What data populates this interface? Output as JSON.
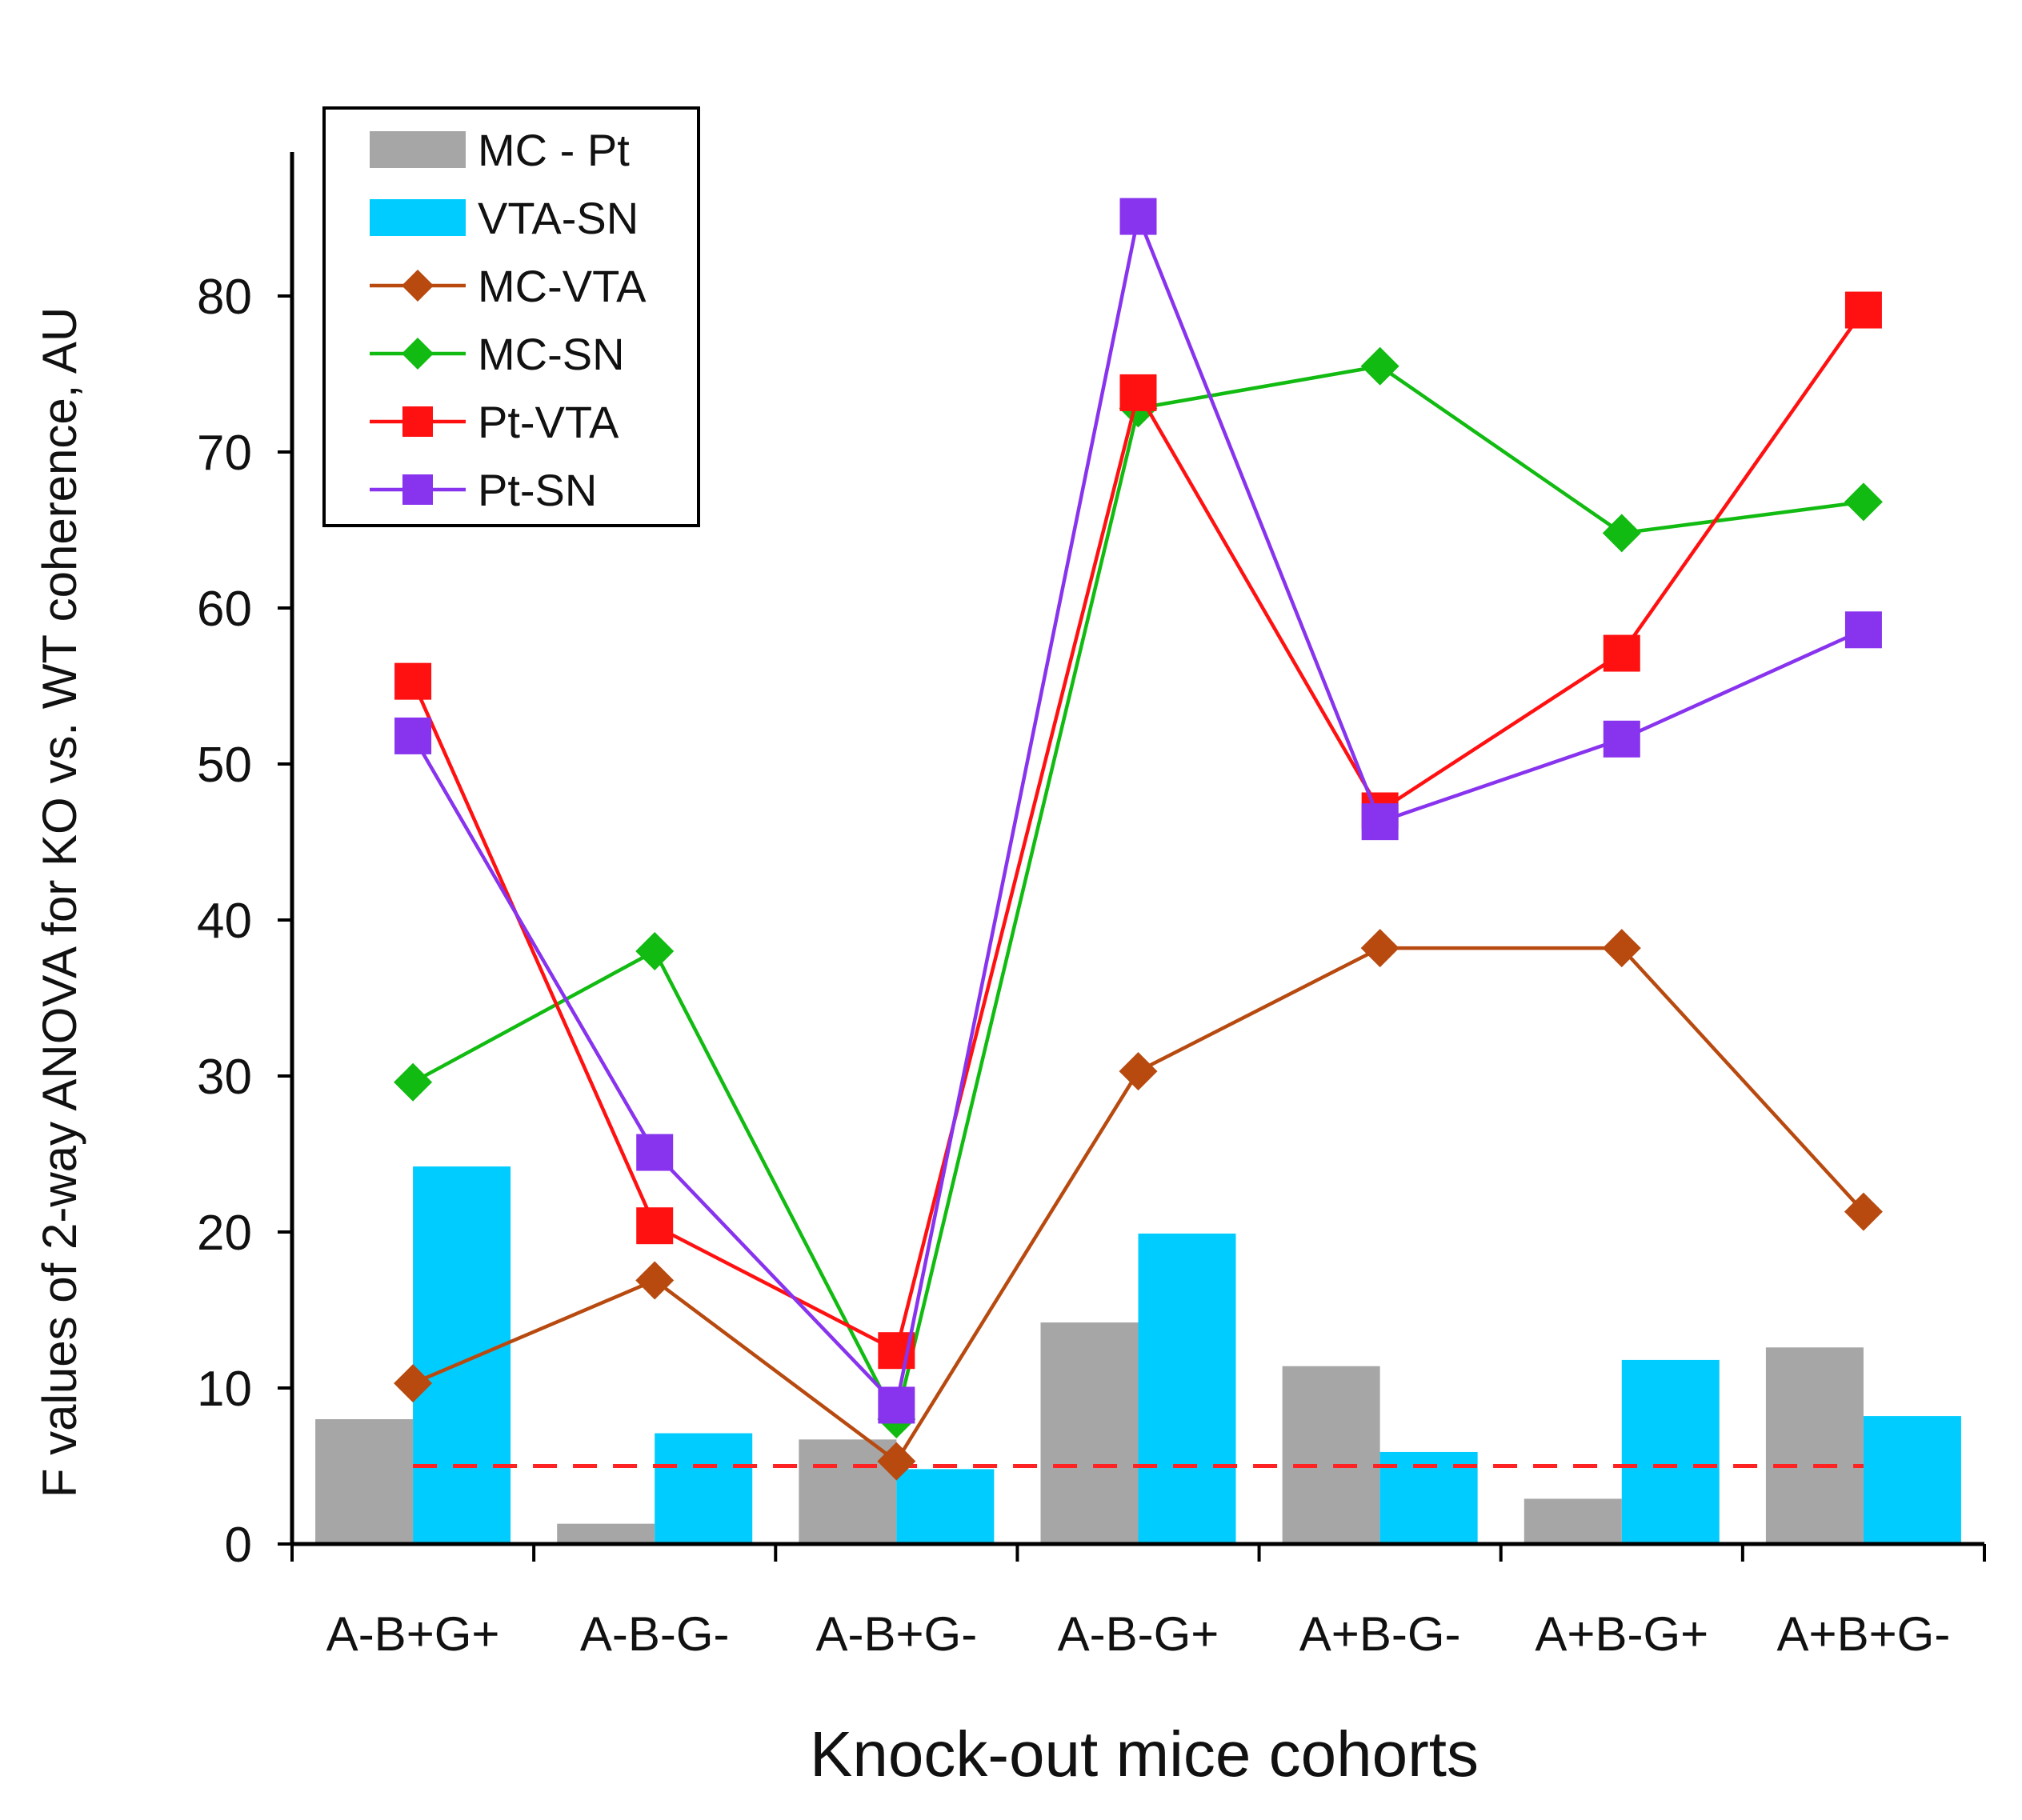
{
  "chart_data": {
    "type": "bar+line",
    "xlabel": "Knock-out mice cohorts",
    "ylabel": "F values of 2-way ANOVA for KO vs. WT coherence, AU",
    "ylim": [
      0,
      88
    ],
    "yticks": [
      0,
      10,
      20,
      30,
      40,
      50,
      60,
      70,
      80
    ],
    "categories": [
      "A-B+G+",
      "A-B-G-",
      "A-B+G-",
      "A-B-G+",
      "A+B-G-",
      "A+B-G+",
      "A+B+G-"
    ],
    "threshold": 5,
    "legend_position": "top-left",
    "bar_series": [
      {
        "name": "MC - Pt",
        "color": "#a6a6a6",
        "values": [
          8,
          1.3,
          6.7,
          14.2,
          11.4,
          2.9,
          12.6
        ]
      },
      {
        "name": "VTA-SN",
        "color": "#00ccff",
        "values": [
          24.2,
          7.1,
          4.8,
          19.9,
          5.9,
          11.8,
          8.2
        ]
      }
    ],
    "line_series": [
      {
        "name": "MC-VTA",
        "color": "#b84a10",
        "marker": "diamond",
        "values": [
          10.3,
          16.9,
          5.3,
          30.3,
          38.2,
          38.2,
          21.3
        ]
      },
      {
        "name": "MC-SN",
        "color": "#11bb11",
        "marker": "diamond",
        "values": [
          29.6,
          38.0,
          8.0,
          72.8,
          75.5,
          64.8,
          66.8
        ]
      },
      {
        "name": "Pt-VTA",
        "color": "#ff1111",
        "marker": "square",
        "values": [
          55.3,
          20.4,
          12.4,
          73.8,
          47.0,
          57.1,
          79.1
        ]
      },
      {
        "name": "Pt-SN",
        "color": "#8833ee",
        "marker": "square",
        "values": [
          51.8,
          25.1,
          8.9,
          85.1,
          46.3,
          51.6,
          58.6
        ]
      }
    ]
  }
}
